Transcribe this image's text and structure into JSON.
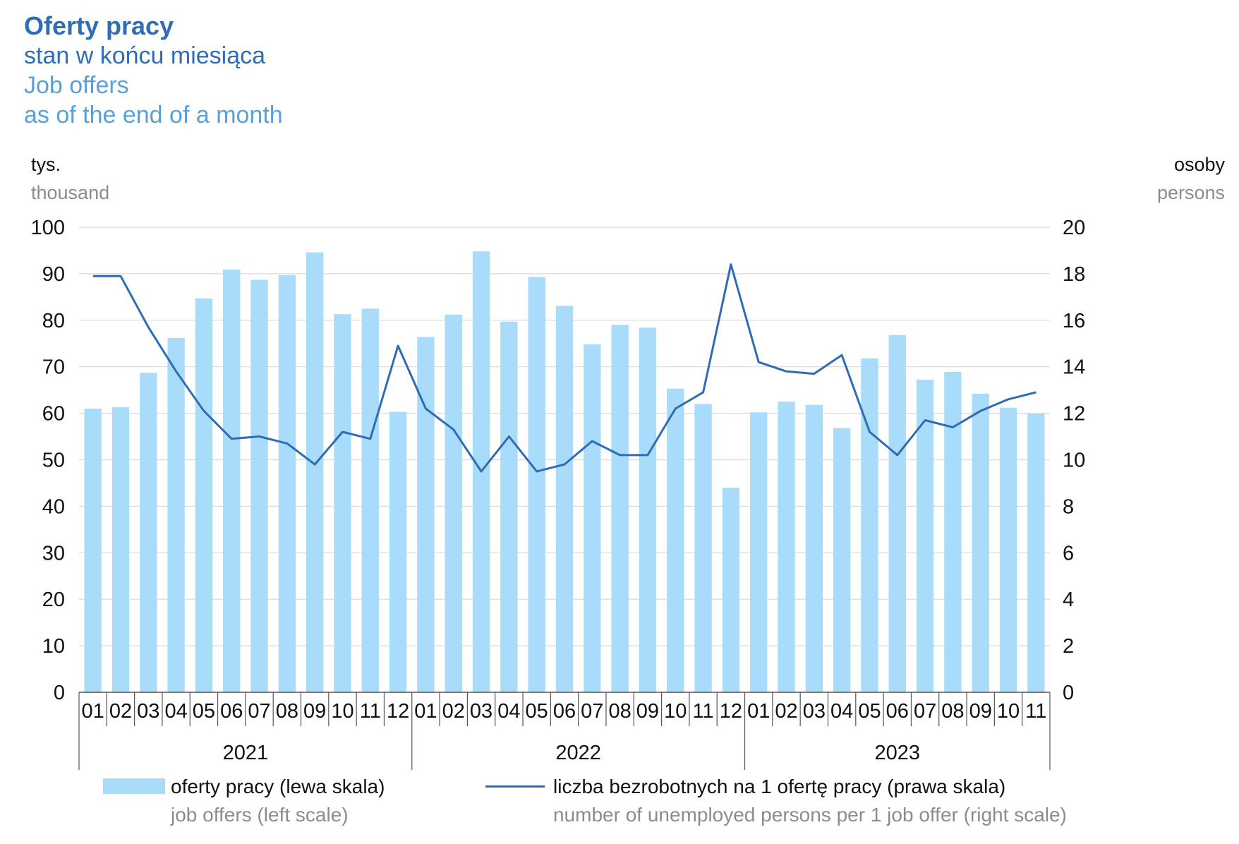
{
  "title": {
    "pl_main": "Oferty pracy",
    "pl_sub": "stan w końcu miesiąca",
    "en_main": "Job offers",
    "en_sub": "as of the end of a month"
  },
  "axes": {
    "left_unit_pl": "tys.",
    "left_unit_en": "thousand",
    "right_unit_pl": "osoby",
    "right_unit_en": "persons"
  },
  "legend": {
    "bars_pl": "oferty pracy (lewa skala)",
    "bars_en": "job offers (left scale)",
    "line_pl": "liczba bezrobotnych na 1 ofertę pracy (prawa skala)",
    "line_en": "number of unemployed persons per 1 job offer (right scale)"
  },
  "colors": {
    "bars": "#a9dcfb",
    "line": "#2e6db3",
    "grid": "#d9d9d9",
    "title_dark": "#2f6eb5",
    "title_light": "#5aa0d8"
  },
  "chart_data": {
    "type": "bar",
    "categories": [
      "01",
      "02",
      "03",
      "04",
      "05",
      "06",
      "07",
      "08",
      "09",
      "10",
      "11",
      "12",
      "01",
      "02",
      "03",
      "04",
      "05",
      "06",
      "07",
      "08",
      "09",
      "10",
      "11",
      "12",
      "01",
      "02",
      "03",
      "04",
      "05",
      "06",
      "07",
      "08",
      "09",
      "10",
      "11"
    ],
    "year_groups": [
      {
        "label": "2021",
        "count": 12
      },
      {
        "label": "2022",
        "count": 12
      },
      {
        "label": "2023",
        "count": 11
      }
    ],
    "series": [
      {
        "name": "oferty pracy (lewa skala)",
        "type": "bar",
        "axis": "left",
        "values": [
          61.0,
          61.3,
          68.7,
          76.2,
          84.7,
          90.9,
          88.7,
          89.7,
          94.6,
          81.3,
          82.5,
          60.3,
          76.4,
          81.2,
          94.8,
          79.7,
          89.3,
          83.1,
          74.8,
          79.0,
          78.4,
          65.3,
          62.0,
          44.0,
          60.2,
          62.5,
          61.8,
          56.8,
          71.8,
          76.8,
          67.2,
          68.9,
          64.2,
          61.2,
          59.9
        ]
      },
      {
        "name": "liczba bezrobotnych na 1 ofertę pracy (prawa skala)",
        "type": "line",
        "axis": "right",
        "values": [
          17.9,
          17.9,
          15.7,
          13.8,
          12.1,
          10.9,
          11.0,
          10.7,
          9.8,
          11.2,
          10.9,
          14.9,
          12.2,
          11.3,
          9.5,
          11.0,
          9.5,
          9.8,
          10.8,
          10.2,
          10.2,
          12.2,
          12.9,
          18.4,
          14.2,
          13.8,
          13.7,
          14.5,
          11.2,
          10.2,
          11.7,
          11.4,
          12.1,
          12.6,
          12.9
        ]
      }
    ],
    "y_left": {
      "min": 0,
      "max": 100,
      "step": 10,
      "ticks": [
        "0",
        "10",
        "20",
        "30",
        "40",
        "50",
        "60",
        "70",
        "80",
        "90",
        "100"
      ]
    },
    "y_right": {
      "min": 0,
      "max": 20,
      "step": 2,
      "ticks": [
        "0",
        "2",
        "4",
        "6",
        "8",
        "10",
        "12",
        "14",
        "16",
        "18",
        "20"
      ]
    },
    "grid": true,
    "legend_position": "bottom"
  }
}
